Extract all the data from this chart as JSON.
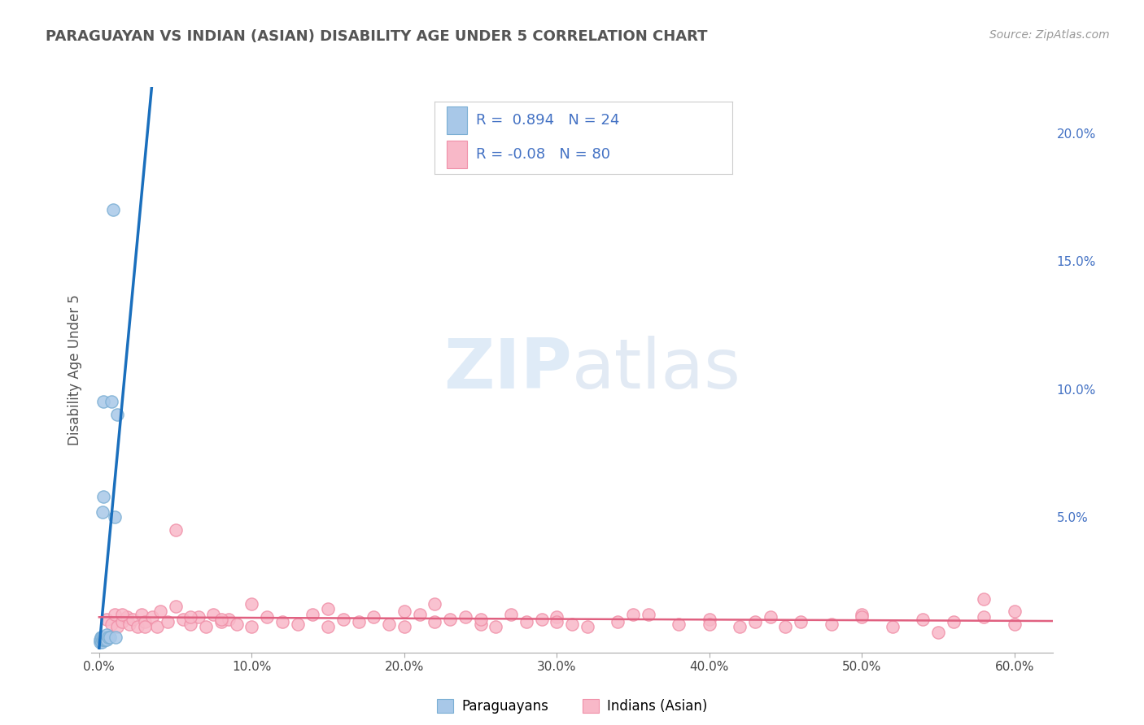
{
  "title": "PARAGUAYAN VS INDIAN (ASIAN) DISABILITY AGE UNDER 5 CORRELATION CHART",
  "source": "Source: ZipAtlas.com",
  "ylabel": "Disability Age Under 5",
  "xlabel_ticks": [
    "0.0%",
    "10.0%",
    "20.0%",
    "30.0%",
    "40.0%",
    "50.0%",
    "60.0%"
  ],
  "xlabel_vals": [
    0.0,
    0.1,
    0.2,
    0.3,
    0.4,
    0.5,
    0.6
  ],
  "ylabel_ticks_right": [
    "5.0%",
    "10.0%",
    "15.0%",
    "20.0%"
  ],
  "ylabel_vals_right": [
    0.05,
    0.1,
    0.15,
    0.2
  ],
  "xlim": [
    -0.005,
    0.625
  ],
  "ylim": [
    -0.003,
    0.218
  ],
  "paraguayan_color": "#a8c8e8",
  "paraguayan_edge_color": "#7bafd4",
  "indian_color": "#f8b8c8",
  "indian_edge_color": "#f090a8",
  "regression_paraguayan_color": "#1a6fbd",
  "regression_indian_color": "#e06080",
  "paraguayan_R": 0.894,
  "paraguayan_N": 24,
  "indian_R": -0.08,
  "indian_N": 80,
  "legend_label_paraguayan": "Paraguayans",
  "legend_label_indian": "Indians (Asian)",
  "watermark_zip": "ZIP",
  "watermark_atlas": "atlas",
  "background_color": "#ffffff",
  "grid_color": "#cccccc",
  "title_color": "#555555",
  "axis_label_color": "#555555",
  "right_axis_color": "#4472c4",
  "legend_text_color": "#4472c4",
  "paraguayan_x": [
    0.0005,
    0.0008,
    0.001,
    0.0012,
    0.0015,
    0.0018,
    0.002,
    0.0022,
    0.0025,
    0.003,
    0.003,
    0.003,
    0.0035,
    0.004,
    0.004,
    0.005,
    0.005,
    0.006,
    0.007,
    0.008,
    0.009,
    0.01,
    0.011,
    0.012
  ],
  "paraguayan_y": [
    0.001,
    0.002,
    0.003,
    0.002,
    0.001,
    0.003,
    0.002,
    0.052,
    0.058,
    0.002,
    0.003,
    0.095,
    0.002,
    0.002,
    0.003,
    0.002,
    0.004,
    0.003,
    0.003,
    0.095,
    0.17,
    0.05,
    0.003,
    0.09
  ],
  "indian_x": [
    0.005,
    0.008,
    0.01,
    0.012,
    0.015,
    0.018,
    0.02,
    0.022,
    0.025,
    0.028,
    0.03,
    0.035,
    0.038,
    0.04,
    0.045,
    0.05,
    0.055,
    0.06,
    0.065,
    0.07,
    0.075,
    0.08,
    0.085,
    0.09,
    0.1,
    0.11,
    0.12,
    0.13,
    0.14,
    0.15,
    0.16,
    0.17,
    0.18,
    0.19,
    0.2,
    0.21,
    0.22,
    0.23,
    0.24,
    0.25,
    0.26,
    0.27,
    0.28,
    0.29,
    0.3,
    0.31,
    0.32,
    0.34,
    0.36,
    0.38,
    0.4,
    0.42,
    0.44,
    0.46,
    0.48,
    0.5,
    0.52,
    0.54,
    0.56,
    0.58,
    0.6,
    0.05,
    0.1,
    0.2,
    0.25,
    0.3,
    0.35,
    0.4,
    0.45,
    0.5,
    0.55,
    0.6,
    0.58,
    0.43,
    0.15,
    0.22,
    0.08,
    0.03,
    0.015,
    0.06
  ],
  "indian_y": [
    0.01,
    0.008,
    0.012,
    0.007,
    0.009,
    0.011,
    0.008,
    0.01,
    0.007,
    0.012,
    0.009,
    0.011,
    0.007,
    0.013,
    0.009,
    0.045,
    0.01,
    0.008,
    0.011,
    0.007,
    0.012,
    0.009,
    0.01,
    0.008,
    0.007,
    0.011,
    0.009,
    0.008,
    0.012,
    0.007,
    0.01,
    0.009,
    0.011,
    0.008,
    0.007,
    0.012,
    0.009,
    0.01,
    0.011,
    0.008,
    0.007,
    0.012,
    0.009,
    0.01,
    0.011,
    0.008,
    0.007,
    0.009,
    0.012,
    0.008,
    0.01,
    0.007,
    0.011,
    0.009,
    0.008,
    0.012,
    0.007,
    0.01,
    0.009,
    0.011,
    0.008,
    0.015,
    0.016,
    0.013,
    0.01,
    0.009,
    0.012,
    0.008,
    0.007,
    0.011,
    0.005,
    0.013,
    0.018,
    0.009,
    0.014,
    0.016,
    0.01,
    0.007,
    0.012,
    0.011
  ]
}
